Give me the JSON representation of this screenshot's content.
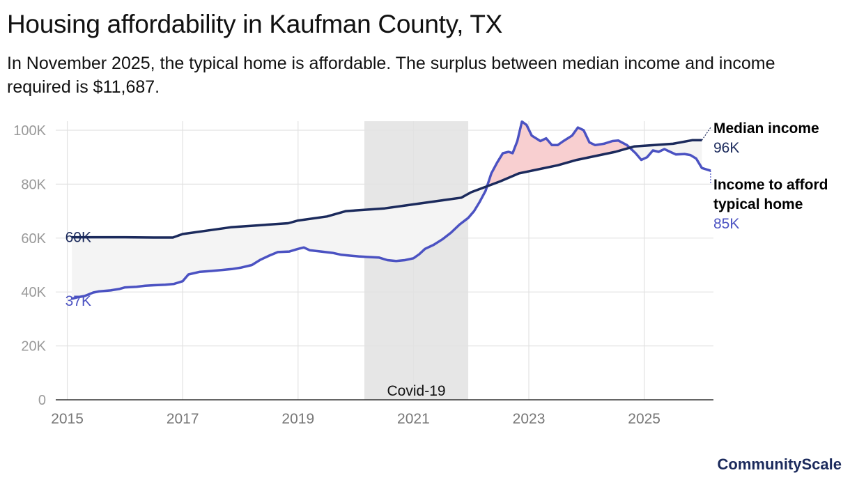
{
  "title": "Housing affordability in Kaufman County, TX",
  "subtitle": "In November 2025, the typical home is affordable. The surplus between median income and income required is $11,687.",
  "brand": "CommunityScale",
  "colors": {
    "income": "#1b2a5c",
    "home": "#4b52c2",
    "surplus_fill": "#f4f4f4",
    "deficit_fill": "#f8cfd0",
    "covid_band": "#e6e6e6",
    "grid": "#e2e2e2"
  },
  "chart_data": {
    "type": "line",
    "title": "Housing affordability in Kaufman County, TX",
    "xlabel": "",
    "ylabel": "",
    "xlim": [
      2014.8,
      2026.2
    ],
    "ylim": [
      0,
      100000
    ],
    "y_ticks": [
      0,
      20000,
      40000,
      60000,
      80000,
      100000
    ],
    "y_tick_labels": [
      "0",
      "20K",
      "40K",
      "60K",
      "80K",
      "100K"
    ],
    "x_ticks": [
      2015,
      2017,
      2019,
      2021,
      2023,
      2025
    ],
    "x_tick_labels": [
      "2015",
      "2017",
      "2019",
      "2021",
      "2023",
      "2025"
    ],
    "annotation": {
      "label": "Covid-19",
      "x_start": 2020.15,
      "x_end": 2021.95
    },
    "series": [
      {
        "name": "Median income",
        "end_label": "96K",
        "start_label": "60K",
        "points": [
          [
            2015.08,
            60300
          ],
          [
            2015.5,
            60300
          ],
          [
            2016.0,
            60300
          ],
          [
            2016.5,
            60200
          ],
          [
            2016.83,
            60200
          ],
          [
            2017.0,
            61500
          ],
          [
            2017.5,
            63000
          ],
          [
            2017.83,
            64000
          ],
          [
            2018.5,
            65000
          ],
          [
            2018.83,
            65500
          ],
          [
            2019.0,
            66500
          ],
          [
            2019.5,
            68000
          ],
          [
            2019.83,
            70000
          ],
          [
            2020.5,
            71000
          ],
          [
            2020.83,
            72000
          ],
          [
            2021.5,
            74000
          ],
          [
            2021.83,
            75000
          ],
          [
            2022.0,
            77000
          ],
          [
            2022.5,
            81000
          ],
          [
            2022.83,
            84000
          ],
          [
            2023.5,
            87000
          ],
          [
            2023.83,
            89000
          ],
          [
            2024.5,
            92000
          ],
          [
            2024.83,
            94000
          ],
          [
            2025.5,
            95000
          ],
          [
            2025.83,
            96300
          ],
          [
            2026.0,
            96300
          ]
        ]
      },
      {
        "name": "Income to afford typical home",
        "end_label": "85K",
        "start_label": "37K",
        "points": [
          [
            2015.08,
            37500
          ],
          [
            2015.17,
            38000
          ],
          [
            2015.3,
            38500
          ],
          [
            2015.45,
            39800
          ],
          [
            2015.55,
            40200
          ],
          [
            2015.75,
            40600
          ],
          [
            2015.9,
            41100
          ],
          [
            2016.0,
            41700
          ],
          [
            2016.2,
            41900
          ],
          [
            2016.35,
            42300
          ],
          [
            2016.5,
            42500
          ],
          [
            2016.7,
            42700
          ],
          [
            2016.85,
            43000
          ],
          [
            2017.0,
            44000
          ],
          [
            2017.1,
            46500
          ],
          [
            2017.3,
            47500
          ],
          [
            2017.5,
            47800
          ],
          [
            2017.7,
            48200
          ],
          [
            2017.85,
            48500
          ],
          [
            2018.0,
            49000
          ],
          [
            2018.2,
            50000
          ],
          [
            2018.35,
            52000
          ],
          [
            2018.5,
            53500
          ],
          [
            2018.65,
            54800
          ],
          [
            2018.85,
            55000
          ],
          [
            2019.0,
            56000
          ],
          [
            2019.1,
            56500
          ],
          [
            2019.2,
            55500
          ],
          [
            2019.4,
            55000
          ],
          [
            2019.6,
            54500
          ],
          [
            2019.75,
            53800
          ],
          [
            2019.9,
            53500
          ],
          [
            2020.05,
            53200
          ],
          [
            2020.2,
            53000
          ],
          [
            2020.4,
            52800
          ],
          [
            2020.55,
            51800
          ],
          [
            2020.7,
            51500
          ],
          [
            2020.85,
            51800
          ],
          [
            2021.0,
            52500
          ],
          [
            2021.1,
            54000
          ],
          [
            2021.2,
            56000
          ],
          [
            2021.35,
            57500
          ],
          [
            2021.5,
            59500
          ],
          [
            2021.65,
            62000
          ],
          [
            2021.8,
            65000
          ],
          [
            2021.95,
            67500
          ],
          [
            2022.05,
            70000
          ],
          [
            2022.15,
            73500
          ],
          [
            2022.25,
            77500
          ],
          [
            2022.35,
            84000
          ],
          [
            2022.45,
            88000
          ],
          [
            2022.55,
            91500
          ],
          [
            2022.65,
            92000
          ],
          [
            2022.72,
            91500
          ],
          [
            2022.8,
            96000
          ],
          [
            2022.88,
            103200
          ],
          [
            2022.96,
            102000
          ],
          [
            2023.05,
            98000
          ],
          [
            2023.2,
            96000
          ],
          [
            2023.3,
            97000
          ],
          [
            2023.4,
            94500
          ],
          [
            2023.5,
            94500
          ],
          [
            2023.6,
            96000
          ],
          [
            2023.75,
            98000
          ],
          [
            2023.85,
            101000
          ],
          [
            2023.95,
            100000
          ],
          [
            2024.05,
            95500
          ],
          [
            2024.15,
            94500
          ],
          [
            2024.3,
            95000
          ],
          [
            2024.45,
            96000
          ],
          [
            2024.55,
            96200
          ],
          [
            2024.7,
            94500
          ],
          [
            2024.85,
            91500
          ],
          [
            2024.95,
            89000
          ],
          [
            2025.05,
            90000
          ],
          [
            2025.15,
            92500
          ],
          [
            2025.25,
            92000
          ],
          [
            2025.35,
            93000
          ],
          [
            2025.45,
            92000
          ],
          [
            2025.55,
            91000
          ],
          [
            2025.7,
            91200
          ],
          [
            2025.8,
            90800
          ],
          [
            2025.9,
            89500
          ],
          [
            2026.0,
            86000
          ],
          [
            2026.15,
            85000
          ]
        ]
      }
    ]
  }
}
